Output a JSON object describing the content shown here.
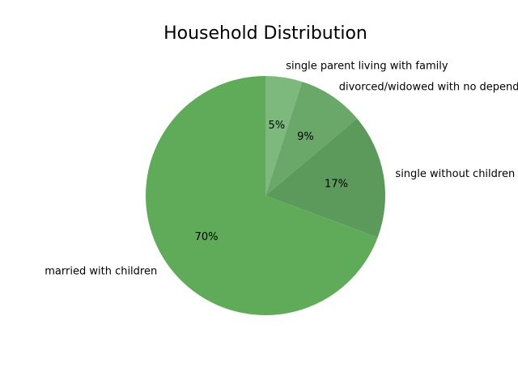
{
  "chart_data": {
    "type": "pie",
    "title": "Household Distribution",
    "categories": [
      "single parent living with family",
      "divorced/widowed with no dependents",
      "single without children",
      "married with children"
    ],
    "values": [
      5,
      9,
      17,
      70
    ],
    "percent_labels": [
      "5%",
      "9%",
      "17%",
      "70%"
    ],
    "colors": [
      "#7db97d",
      "#6aa86a",
      "#5b9a5b",
      "#60ab5a"
    ],
    "start_angle_deg": 90,
    "direction": "clockwise",
    "legend": "none"
  }
}
